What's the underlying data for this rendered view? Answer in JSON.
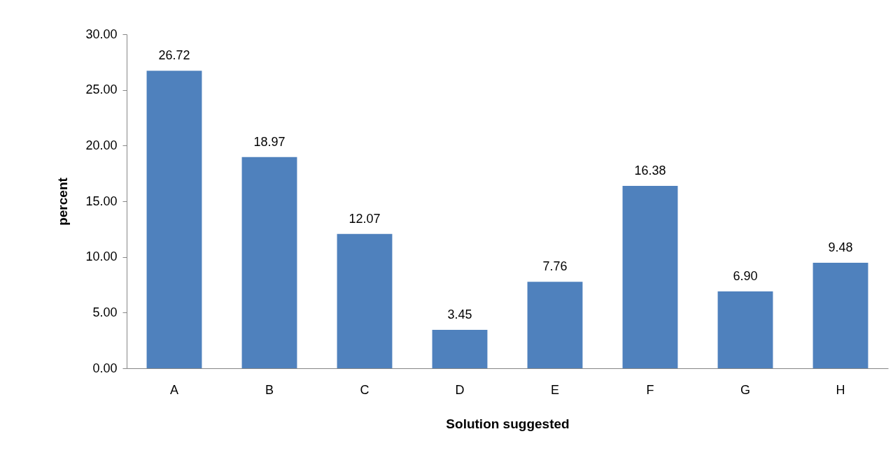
{
  "chart_data": {
    "type": "bar",
    "xlabel": "Solution suggested",
    "ylabel": "percent",
    "categories": [
      "A",
      "B",
      "C",
      "D",
      "E",
      "F",
      "G",
      "H"
    ],
    "values": [
      26.72,
      18.97,
      12.07,
      3.45,
      7.76,
      16.38,
      6.9,
      9.48
    ],
    "value_labels": [
      "26.72",
      "18.97",
      "12.07",
      "3.45",
      "7.76",
      "16.38",
      "6.90",
      "9.48"
    ],
    "color": "#4f81bd",
    "ylim": [
      0,
      30
    ],
    "yticks": [
      {
        "value": 0,
        "label": "0.00"
      },
      {
        "value": 5,
        "label": "5.00"
      },
      {
        "value": 10,
        "label": "10.00"
      },
      {
        "value": 15,
        "label": "15.00"
      },
      {
        "value": 20,
        "label": "20.00"
      },
      {
        "value": 25,
        "label": "25.00"
      },
      {
        "value": 30,
        "label": "30.00"
      }
    ],
    "grid": false
  }
}
